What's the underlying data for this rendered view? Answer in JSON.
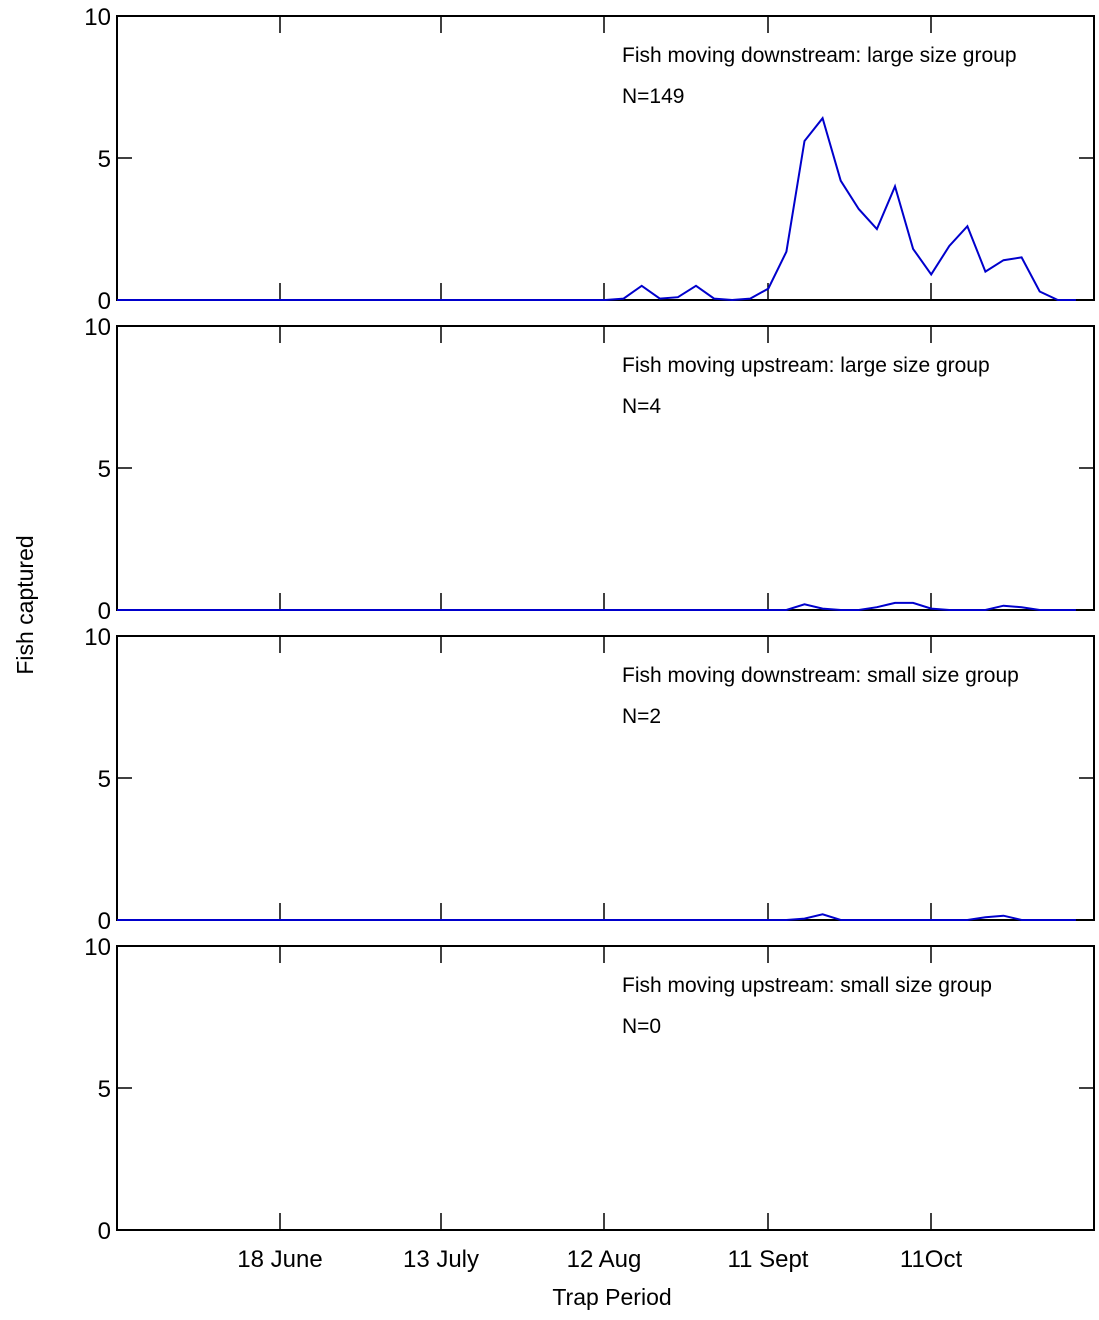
{
  "chart_data": {
    "type": "line",
    "xlabel": "Trap Period",
    "ylabel": "Fish captured",
    "x_tick_labels": [
      "18 June",
      "13 July",
      "12 Aug",
      "11 Sept",
      "11Oct"
    ],
    "y_ticks": [
      0,
      5,
      10
    ],
    "ylim": [
      0,
      10
    ],
    "grid": false,
    "line_color": "#0000cc",
    "panels": [
      {
        "label": "Fish moving downstream: large size group",
        "n_label": "N=149",
        "values": [
          0,
          0,
          0,
          0,
          0,
          0,
          0,
          0,
          0,
          0,
          0,
          0,
          0,
          0,
          0,
          0,
          0,
          0,
          0,
          0,
          0,
          0,
          0,
          0,
          0,
          0,
          0,
          0,
          0.05,
          0.5,
          0.05,
          0.1,
          0.5,
          0.05,
          0,
          0.05,
          0.4,
          1.7,
          5.6,
          6.4,
          4.2,
          3.2,
          2.5,
          4.0,
          1.8,
          0.9,
          1.9,
          2.6,
          1.0,
          1.4,
          1.5,
          0.3,
          0,
          0
        ]
      },
      {
        "label": "Fish moving upstream: large size group",
        "n_label": "N=4",
        "values": [
          0,
          0,
          0,
          0,
          0,
          0,
          0,
          0,
          0,
          0,
          0,
          0,
          0,
          0,
          0,
          0,
          0,
          0,
          0,
          0,
          0,
          0,
          0,
          0,
          0,
          0,
          0,
          0,
          0,
          0,
          0,
          0,
          0,
          0,
          0,
          0,
          0,
          0,
          0.2,
          0.05,
          0,
          0,
          0.1,
          0.25,
          0.25,
          0.05,
          0,
          0,
          0,
          0.15,
          0.1,
          0,
          0,
          0
        ]
      },
      {
        "label": "Fish moving downstream: small size group",
        "n_label": "N=2",
        "values": [
          0,
          0,
          0,
          0,
          0,
          0,
          0,
          0,
          0,
          0,
          0,
          0,
          0,
          0,
          0,
          0,
          0,
          0,
          0,
          0,
          0,
          0,
          0,
          0,
          0,
          0,
          0,
          0,
          0,
          0,
          0,
          0,
          0,
          0,
          0,
          0,
          0,
          0,
          0.05,
          0.2,
          0,
          0,
          0,
          0,
          0,
          0,
          0,
          0,
          0.1,
          0.15,
          0,
          0,
          0,
          0
        ]
      },
      {
        "label": "Fish moving upstream: small size group",
        "n_label": "N=0",
        "values": []
      }
    ]
  }
}
